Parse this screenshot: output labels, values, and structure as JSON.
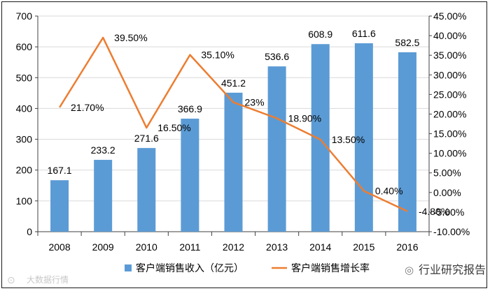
{
  "chart_data": {
    "type": "bar",
    "categories": [
      "2008",
      "2009",
      "2010",
      "2011",
      "2012",
      "2013",
      "2014",
      "2015",
      "2016"
    ],
    "series": [
      {
        "name": "客户端销售收入（亿元）",
        "type": "bar",
        "axis": "left",
        "color": "#5b9bd5",
        "values": [
          167.1,
          233.2,
          271.6,
          366.9,
          451.2,
          536.6,
          608.9,
          611.6,
          582.5
        ],
        "labels": [
          "167.1",
          "233.2",
          "271.6",
          "366.9",
          "451.2",
          "536.6",
          "608.9",
          "611.6",
          "582.5"
        ]
      },
      {
        "name": "客户端销售增长率",
        "type": "line",
        "axis": "right",
        "color": "#ed7d31",
        "values": [
          21.7,
          39.5,
          16.5,
          35.1,
          23.0,
          18.9,
          13.5,
          0.4,
          -4.8
        ],
        "labels": [
          "21.70%",
          "39.50%",
          "16.50%",
          "35.10%",
          "23%",
          "18.90%",
          "13.50%",
          "0.40%",
          "-4.80%"
        ]
      }
    ],
    "y_left": {
      "ylim": [
        0,
        700
      ],
      "ticks": [
        "0",
        "100",
        "200",
        "300",
        "400",
        "500",
        "600",
        "700"
      ]
    },
    "y_right": {
      "ylim": [
        -10,
        45
      ],
      "ticks": [
        "-10.00%",
        "-5.00%",
        "0.00%",
        "5.00%",
        "10.00%",
        "15.00%",
        "20.00%",
        "25.00%",
        "30.00%",
        "35.00%",
        "40.00%",
        "45.00%"
      ]
    },
    "grid": "horizontal",
    "legend_position": "bottom"
  },
  "watermark_left": "大数据行情",
  "watermark_right": "行业研究报告"
}
